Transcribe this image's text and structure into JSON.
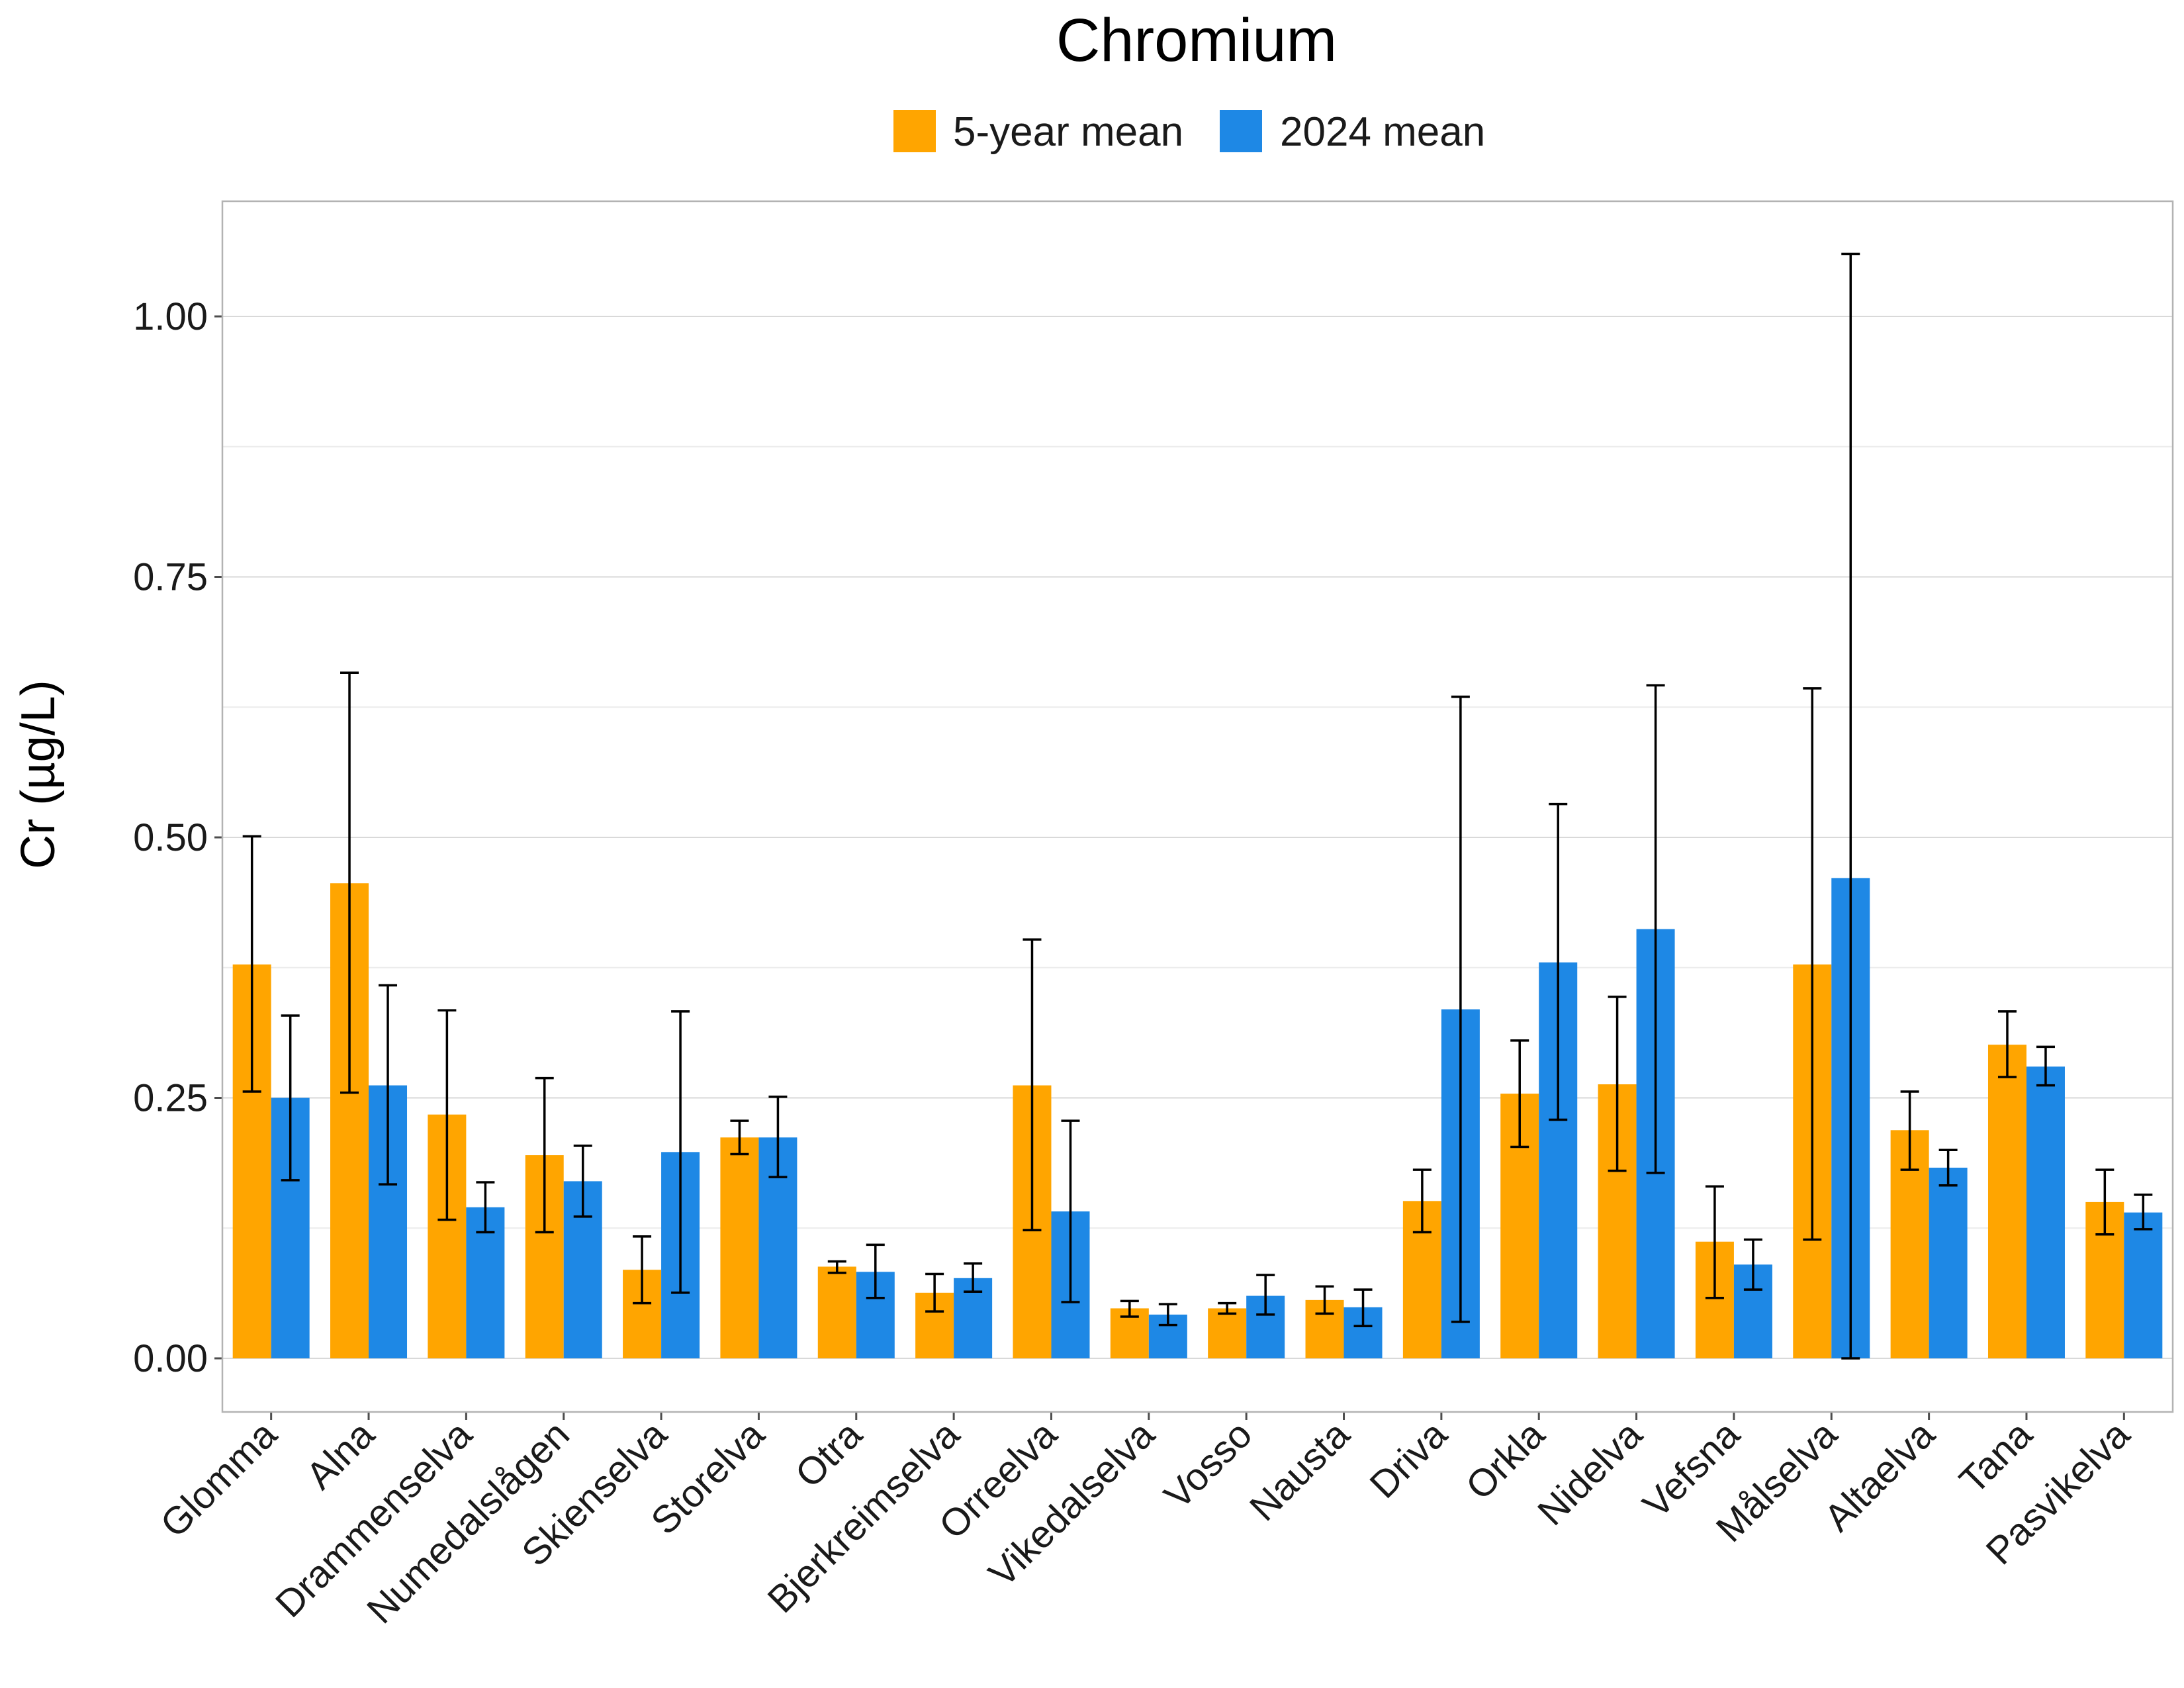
{
  "chart_data": {
    "type": "bar",
    "title": "Chromium",
    "xlabel": "",
    "ylabel": "Cr (µg/L)",
    "ylim": [
      -0.05,
      1.11
    ],
    "yticks": [
      "0.00",
      "0.25",
      "0.50",
      "0.75",
      "1.00"
    ],
    "ytick_values": [
      0,
      0.25,
      0.5,
      0.75,
      1.0
    ],
    "grid": true,
    "legend_position": "top",
    "categories": [
      "Glomma",
      "Alna",
      "Drammenselva",
      "Numedalslågen",
      "Skienselva",
      "Storelva",
      "Otra",
      "Bjerkreimselva",
      "Orreelva",
      "Vikedalselva",
      "Vosso",
      "Nausta",
      "Driva",
      "Orkla",
      "Nidelva",
      "Vefsna",
      "Målselva",
      "Altaelva",
      "Tana",
      "Pasvikelva"
    ],
    "series": [
      {
        "name": "5-year mean",
        "color": "#FFA500",
        "values": [
          0.378,
          0.456,
          0.234,
          0.195,
          0.085,
          0.212,
          0.088,
          0.063,
          0.262,
          0.048,
          0.048,
          0.056,
          0.151,
          0.254,
          0.263,
          0.112,
          0.378,
          0.219,
          0.301,
          0.15
        ],
        "error_low": [
          0.256,
          0.255,
          0.133,
          0.121,
          0.053,
          0.196,
          0.082,
          0.045,
          0.123,
          0.04,
          0.043,
          0.043,
          0.121,
          0.203,
          0.18,
          0.058,
          0.114,
          0.181,
          0.27,
          0.119
        ],
        "error_high": [
          0.501,
          0.658,
          0.334,
          0.269,
          0.117,
          0.228,
          0.093,
          0.081,
          0.402,
          0.055,
          0.053,
          0.069,
          0.181,
          0.305,
          0.347,
          0.165,
          0.643,
          0.256,
          0.333,
          0.181
        ]
      },
      {
        "name": "2024 mean",
        "color": "#1E88E5",
        "values": [
          0.25,
          0.262,
          0.145,
          0.17,
          0.198,
          0.212,
          0.083,
          0.077,
          0.141,
          0.042,
          0.06,
          0.049,
          0.335,
          0.38,
          0.412,
          0.09,
          0.461,
          0.183,
          0.28,
          0.14
        ],
        "error_low": [
          0.171,
          0.167,
          0.121,
          0.136,
          0.063,
          0.174,
          0.058,
          0.064,
          0.054,
          0.032,
          0.042,
          0.031,
          0.035,
          0.229,
          0.178,
          0.066,
          0.0,
          0.166,
          0.262,
          0.124
        ],
        "error_high": [
          0.329,
          0.358,
          0.169,
          0.204,
          0.333,
          0.251,
          0.109,
          0.091,
          0.228,
          0.052,
          0.08,
          0.066,
          0.635,
          0.532,
          0.646,
          0.114,
          1.06,
          0.2,
          0.299,
          0.157
        ]
      }
    ]
  }
}
